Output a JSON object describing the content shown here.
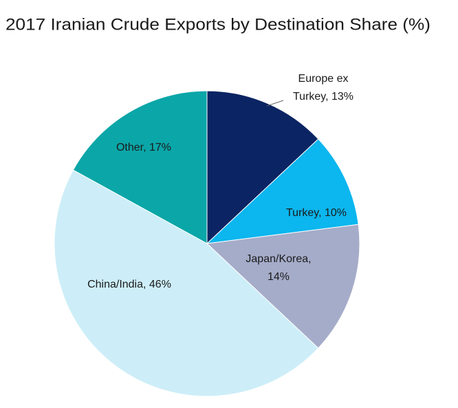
{
  "chart_data": {
    "type": "pie",
    "title": "2017 Iranian Crude Exports by Destination Share (%)",
    "values": [
      13,
      10,
      14,
      46,
      17
    ],
    "value_labels": [
      [
        "Europe ex",
        "Turkey, 13%"
      ],
      [
        "Turkey, 10%"
      ],
      [
        "Japan/Korea,",
        "14%"
      ],
      [
        "China/India, 46%"
      ],
      [
        "Other, 17%"
      ]
    ],
    "colors": [
      "#0b2463",
      "#0cb6ee",
      "#a5acc9",
      "#cdeef8",
      "#0ba6a8"
    ]
  }
}
